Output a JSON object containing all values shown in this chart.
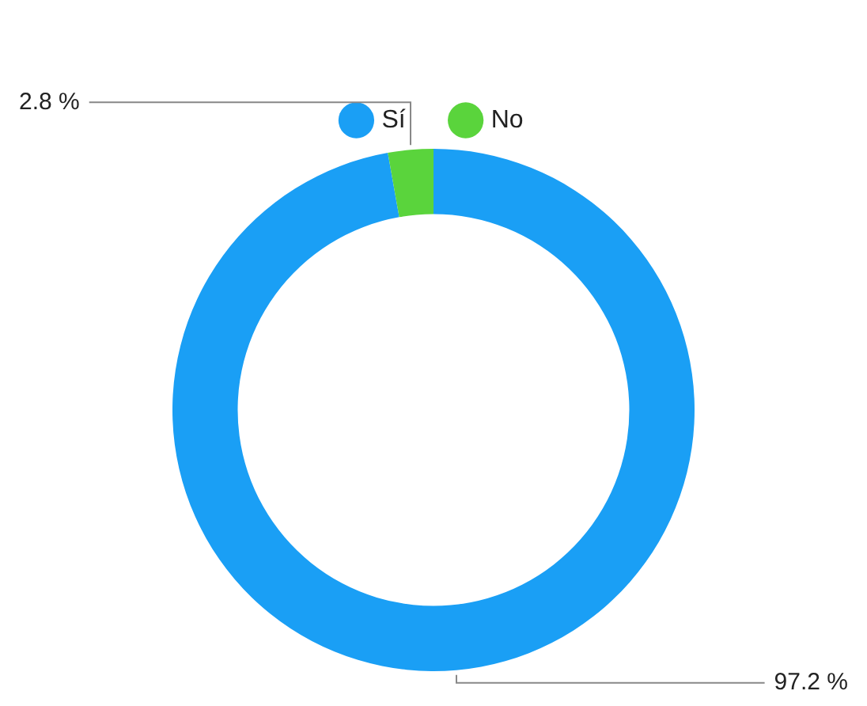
{
  "chart_data": {
    "type": "donut",
    "categories": [
      "Sí",
      "No"
    ],
    "values": [
      97.2,
      2.8
    ],
    "colors": [
      "#1a9ff5",
      "#5ad43c"
    ],
    "value_labels": [
      "97.2 %",
      "2.8 %"
    ],
    "legend": "top"
  }
}
